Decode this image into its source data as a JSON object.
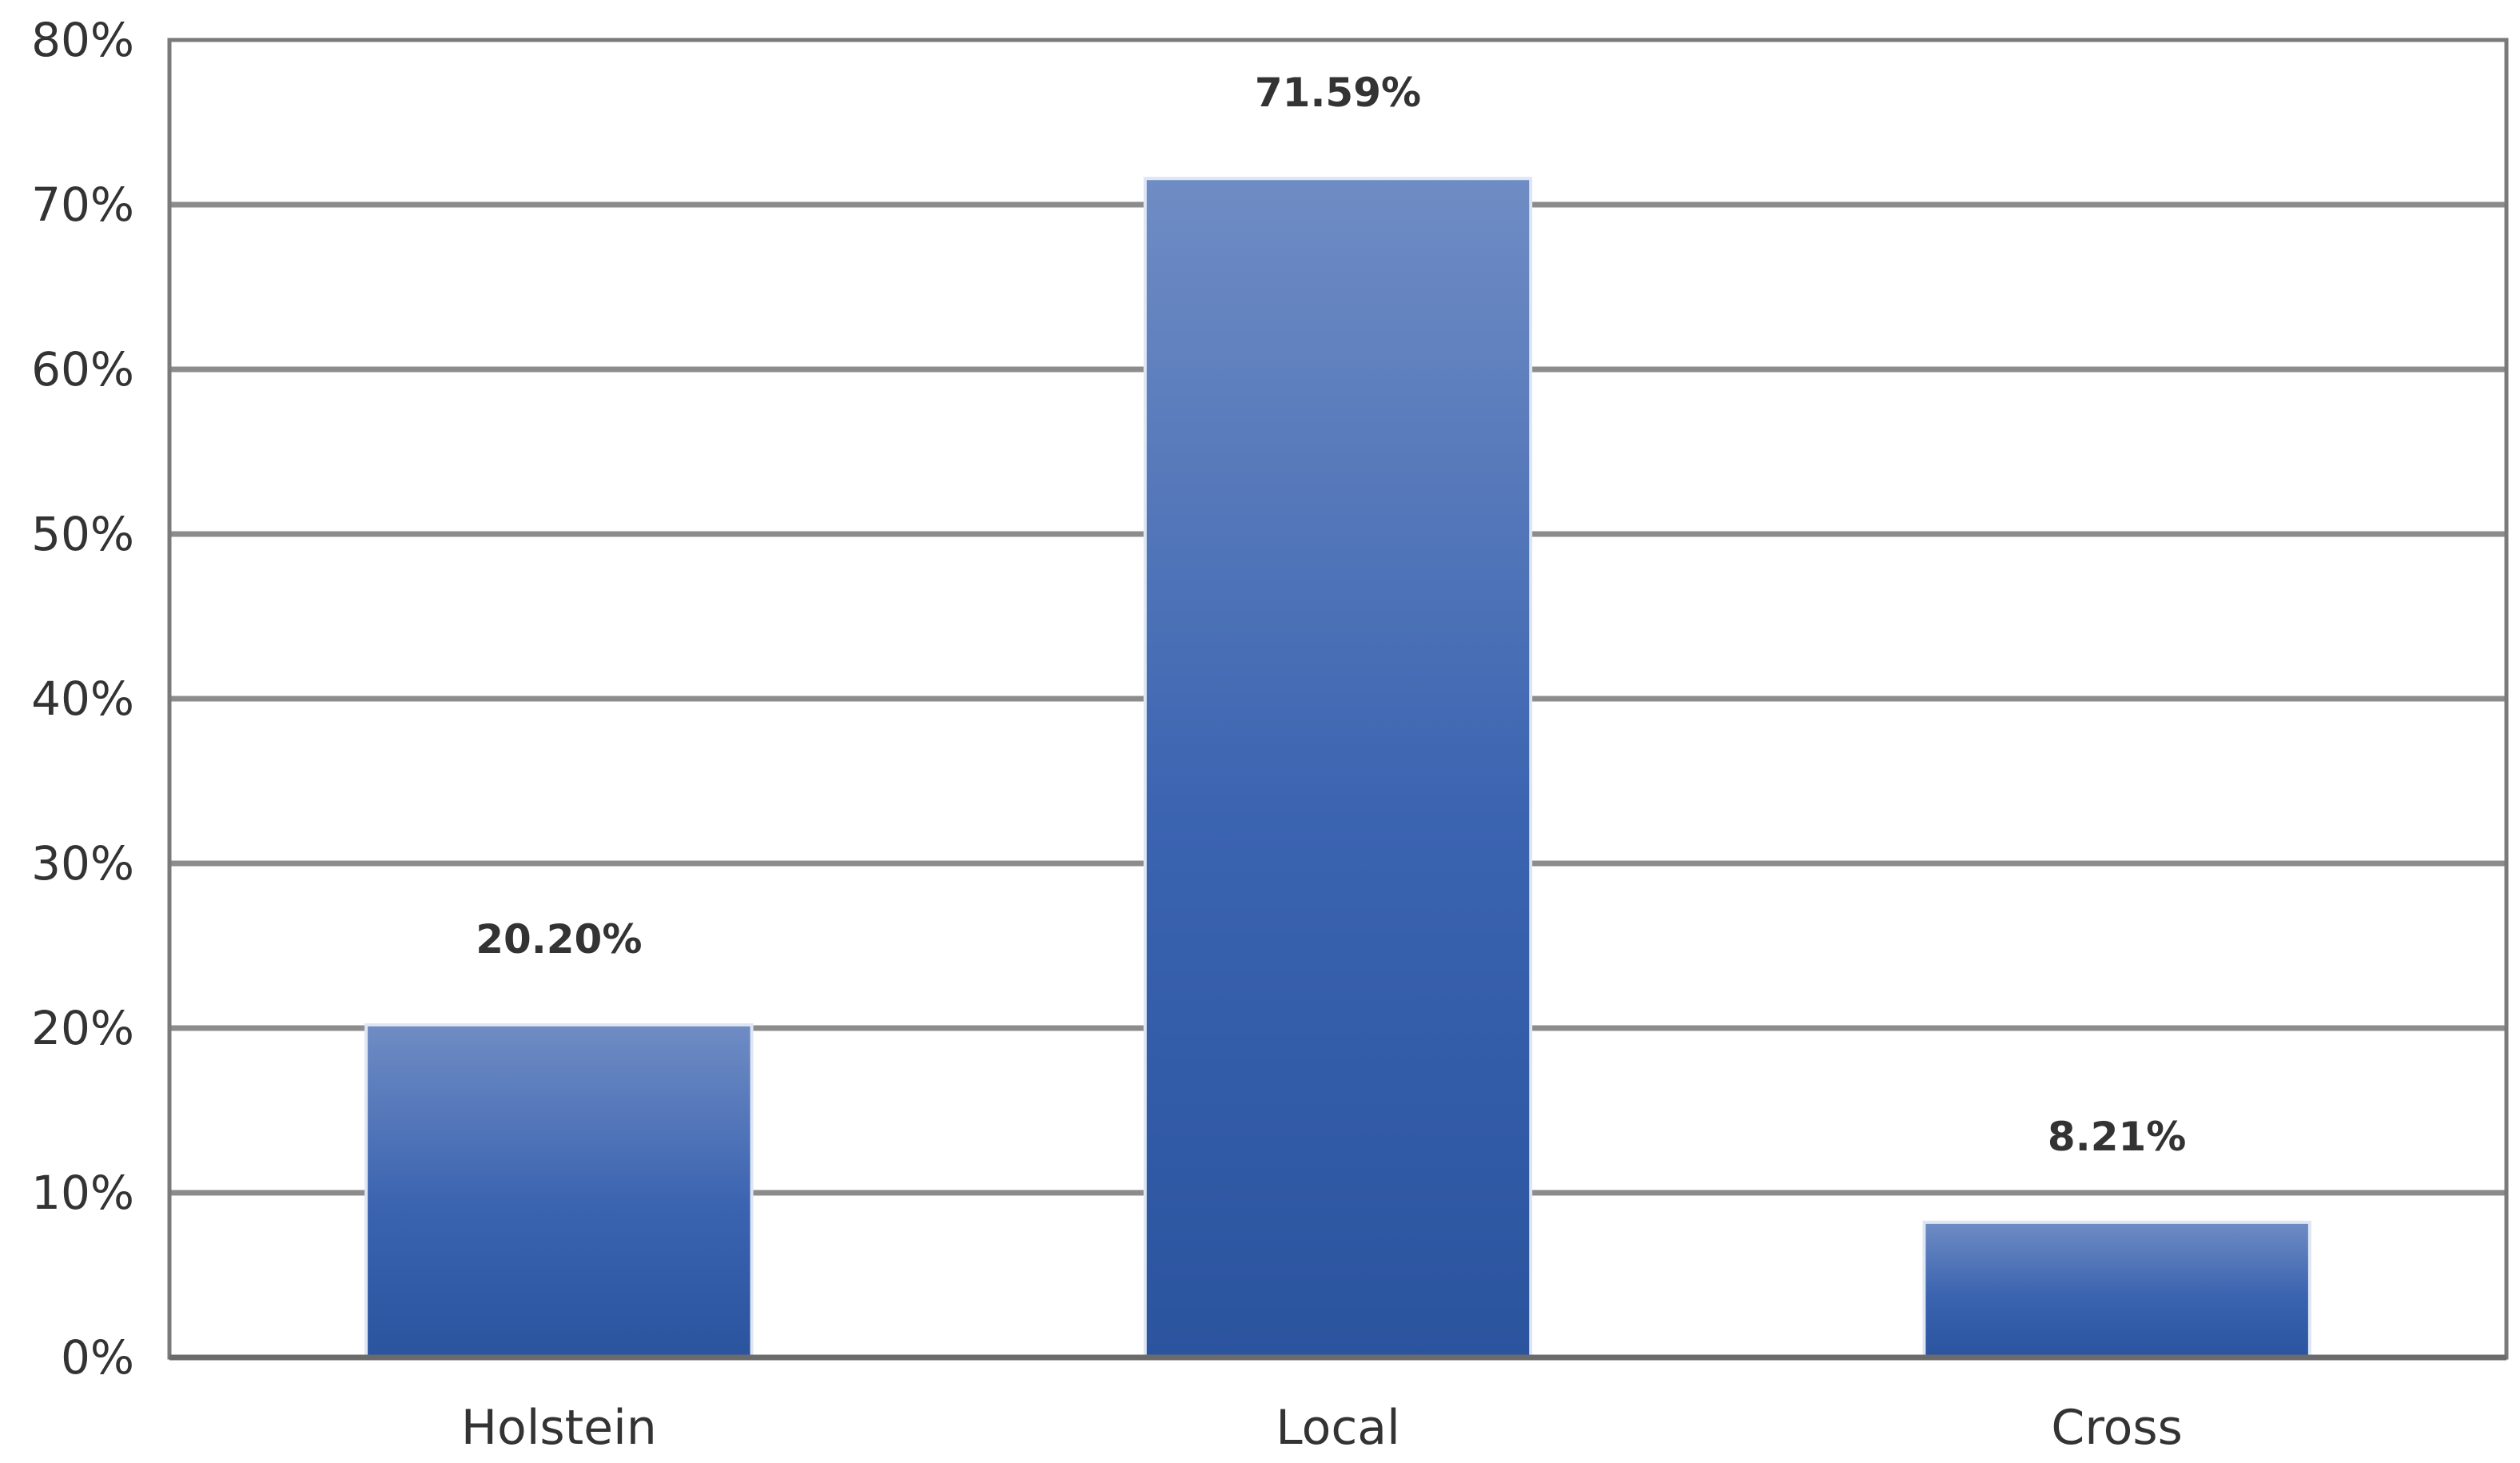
{
  "chart_data": {
    "type": "bar",
    "categories": [
      "Holstein",
      "Local",
      "Cross"
    ],
    "values": [
      20.2,
      71.59,
      8.21
    ],
    "data_labels": [
      "20.20%",
      "71.59%",
      "8.21%"
    ],
    "title": "",
    "xlabel": "",
    "ylabel": "",
    "ylim": [
      0,
      80
    ],
    "y_ticks": [
      0,
      10,
      20,
      30,
      40,
      50,
      60,
      70,
      80
    ],
    "y_tick_labels": [
      "0%",
      "10%",
      "20%",
      "30%",
      "40%",
      "50%",
      "60%",
      "70%",
      "80%"
    ],
    "grid": true,
    "legend": "none",
    "colors": {
      "bar_top": "#6f8cc4",
      "bar_mid": "#3a63b0",
      "bar_bottom": "#2b549f",
      "grid": "#8c8c8c",
      "text": "#333333"
    }
  }
}
